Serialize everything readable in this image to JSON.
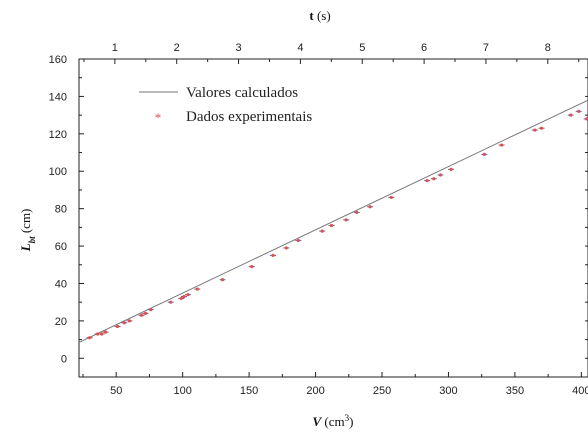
{
  "chart_data": {
    "type": "scatter",
    "xlabel": "V (cm³)",
    "xlabel_main": "V",
    "xlabel_unit_prefix": " (cm",
    "xlabel_unit_sup": "3",
    "xlabel_unit_suffix": ")",
    "ylabel": "L_bt (cm)",
    "ylabel_main": "L",
    "ylabel_sub": "bt",
    "ylabel_unit": " (cm)",
    "top_xlabel": "t (s)",
    "top_xlabel_main": "t",
    "top_xlabel_unit": " (s)",
    "xlim": [
      22,
      405
    ],
    "ylim": [
      -10,
      160
    ],
    "xticks": [
      50,
      100,
      150,
      200,
      250,
      300,
      350,
      400
    ],
    "yticks": [
      0,
      20,
      40,
      60,
      80,
      100,
      120,
      140,
      160
    ],
    "top_xlim": [
      0.42,
      8.65
    ],
    "top_xticks": [
      1,
      2,
      3,
      4,
      5,
      6,
      7,
      8
    ],
    "grid": false,
    "legend_position": "top-left",
    "series": [
      {
        "name": "Valores calculados",
        "kind": "line",
        "color": "#777777",
        "x": [
          22,
          405
        ],
        "y": [
          8.5,
          138
        ]
      },
      {
        "name": "Dados experimentais",
        "kind": "points",
        "color": "#d9534f",
        "x": [
          30,
          36,
          39,
          42,
          51,
          56,
          60,
          69,
          72,
          76,
          91,
          99,
          101,
          104,
          111,
          130,
          152,
          168,
          178,
          187,
          205,
          212,
          223,
          231,
          241,
          257,
          284,
          289,
          294,
          302,
          327,
          340,
          365,
          370,
          392,
          398,
          404
        ],
        "y": [
          11,
          13,
          13,
          14,
          17,
          19,
          20,
          23,
          24,
          26,
          30,
          32,
          33,
          34,
          37,
          42,
          49,
          55,
          59,
          63,
          68,
          71,
          74,
          78,
          81,
          86,
          95,
          96,
          98,
          101,
          109,
          114,
          122,
          123,
          130,
          132,
          128
        ]
      }
    ]
  }
}
